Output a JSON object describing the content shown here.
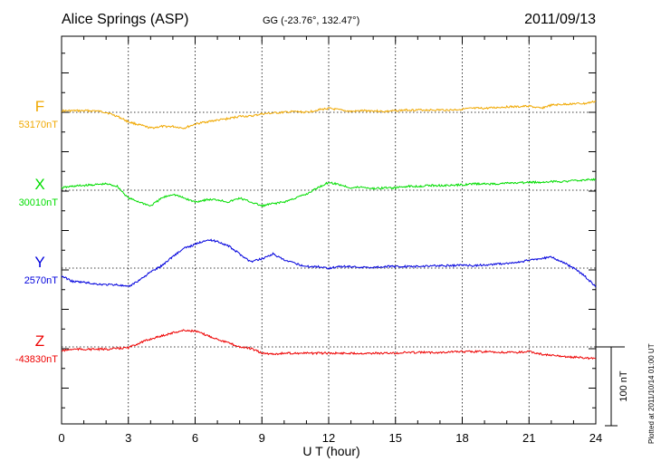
{
  "header": {
    "station": "Alice Springs (ASP)",
    "coords": "GG (-23.76°, 132.47°)",
    "date": "2011/09/13"
  },
  "footer_note": "Plotted at 2011/10/14 01:00 UT",
  "chart_data": {
    "type": "line",
    "xlabel": "U T (hour)",
    "ylabel": "",
    "xlim": [
      0,
      24
    ],
    "x_ticks": [
      "0",
      "3",
      "6",
      "9",
      "12",
      "15",
      "18",
      "21",
      "24"
    ],
    "grid": true,
    "scale_bar": {
      "label": "100 nT",
      "value": 100
    },
    "series": [
      {
        "name": "F",
        "baseline_label": "53170nT",
        "baseline": 53170,
        "color": "#f0a800",
        "x": [
          0,
          0.5,
          1,
          1.5,
          2,
          2.5,
          3,
          3.5,
          4,
          4.5,
          5,
          5.5,
          6,
          6.5,
          7,
          7.5,
          8,
          8.5,
          9,
          9.5,
          10,
          10.5,
          11,
          11.5,
          12,
          12.5,
          13,
          13.5,
          14,
          14.5,
          15,
          15.5,
          16,
          16.5,
          17,
          17.5,
          18,
          18.5,
          19,
          19.5,
          20,
          20.5,
          21,
          21.5,
          22,
          22.5,
          23,
          23.5,
          24
        ],
        "y": [
          2,
          2,
          2,
          2,
          0,
          -5,
          -12,
          -16,
          -20,
          -18,
          -18,
          -20,
          -15,
          -12,
          -10,
          -8,
          -5,
          -5,
          -2,
          -1,
          0,
          1,
          0,
          3,
          5,
          3,
          1,
          2,
          2,
          1,
          2,
          3,
          3,
          3,
          3,
          3,
          4,
          5,
          5,
          6,
          7,
          7,
          8,
          5,
          9,
          10,
          11,
          11,
          14
        ]
      },
      {
        "name": "X",
        "baseline_label": "30010nT",
        "baseline": 30010,
        "color": "#00dd00",
        "x": [
          0,
          0.5,
          1,
          1.5,
          2,
          2.5,
          3,
          3.5,
          4,
          4.5,
          5,
          5.5,
          6,
          6.5,
          7,
          7.5,
          8,
          8.5,
          9,
          9.5,
          10,
          10.5,
          11,
          11.5,
          12,
          12.5,
          13,
          13.5,
          14,
          14.5,
          15,
          15.5,
          16,
          16.5,
          17,
          17.5,
          18,
          18.5,
          19,
          19.5,
          20,
          20.5,
          21,
          21.5,
          22,
          22.5,
          23,
          23.5,
          24
        ],
        "y": [
          3,
          5,
          6,
          7,
          8,
          5,
          -10,
          -15,
          -20,
          -10,
          -5,
          -10,
          -15,
          -12,
          -12,
          -15,
          -10,
          -15,
          -20,
          -17,
          -15,
          -10,
          -5,
          3,
          10,
          7,
          3,
          4,
          2,
          3,
          3,
          5,
          5,
          6,
          6,
          6,
          7,
          8,
          8,
          8,
          9,
          9,
          10,
          10,
          11,
          11,
          12,
          13,
          14
        ]
      },
      {
        "name": "Y",
        "baseline_label": "2570nT",
        "baseline": 2570,
        "color": "#0000dd",
        "x": [
          0,
          0.5,
          1,
          1.5,
          2,
          2.5,
          3,
          3.5,
          4,
          4.5,
          5,
          5.5,
          6,
          6.5,
          7,
          7.5,
          8,
          8.5,
          9,
          9.5,
          10,
          10.5,
          11,
          11.5,
          12,
          12.5,
          13,
          13.5,
          14,
          14.5,
          15,
          15.5,
          16,
          16.5,
          17,
          17.5,
          18,
          18.5,
          19,
          19.5,
          20,
          20.5,
          21,
          21.5,
          22,
          22.5,
          23,
          23.5,
          24
        ],
        "y": [
          -10,
          -17,
          -18,
          -20,
          -21,
          -21,
          -24,
          -15,
          -5,
          3,
          15,
          25,
          30,
          36,
          34,
          28,
          18,
          8,
          12,
          18,
          10,
          6,
          2,
          2,
          0,
          2,
          2,
          1,
          1,
          2,
          2,
          2,
          2,
          3,
          3,
          3,
          4,
          3,
          4,
          5,
          6,
          7,
          10,
          12,
          14,
          8,
          0,
          -10,
          -24
        ]
      },
      {
        "name": "Z",
        "baseline_label": "-43830nT",
        "baseline": -43830,
        "color": "#ee0000",
        "x": [
          0,
          0.5,
          1,
          1.5,
          2,
          2.5,
          3,
          3.5,
          4,
          4.5,
          5,
          5.5,
          6,
          6.5,
          7,
          7.5,
          8,
          8.5,
          9,
          9.5,
          10,
          10.5,
          11,
          11.5,
          12,
          12.5,
          13,
          13.5,
          14,
          14.5,
          15,
          15.5,
          16,
          16.5,
          17,
          17.5,
          18,
          18.5,
          19,
          19.5,
          20,
          20.5,
          21,
          21.5,
          22,
          22.5,
          23,
          23.5,
          24
        ],
        "y": [
          -5,
          -3,
          -3,
          -3,
          -3,
          -2,
          -1,
          5,
          10,
          14,
          18,
          21,
          20,
          15,
          10,
          5,
          0,
          -2,
          -8,
          -9,
          -8,
          -8,
          -8,
          -8,
          -8,
          -8,
          -8,
          -8,
          -8,
          -8,
          -8,
          -7,
          -7,
          -7,
          -7,
          -6,
          -6,
          -6,
          -6,
          -7,
          -7,
          -7,
          -6,
          -9,
          -11,
          -12,
          -13,
          -14,
          -15
        ]
      }
    ]
  }
}
